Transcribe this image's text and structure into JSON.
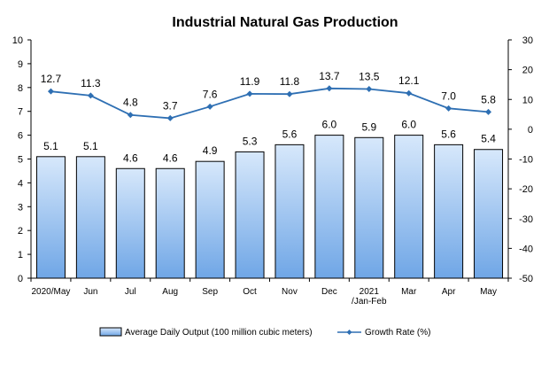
{
  "chart_data": {
    "type": "bar",
    "title": "Industrial Natural Gas Production",
    "categories": [
      [
        "2020/May"
      ],
      [
        "Jun"
      ],
      [
        "Jul"
      ],
      [
        "Aug"
      ],
      [
        "Sep"
      ],
      [
        "Oct"
      ],
      [
        "Nov"
      ],
      [
        "Dec"
      ],
      [
        "2021",
        "/Jan-Feb"
      ],
      [
        "Mar"
      ],
      [
        "Apr"
      ],
      [
        "May"
      ]
    ],
    "series": [
      {
        "name": "Average Daily Output (100 million cubic meters)",
        "type": "bar",
        "axis": "left",
        "values": [
          5.1,
          5.1,
          4.6,
          4.6,
          4.9,
          5.3,
          5.6,
          6.0,
          5.9,
          6.0,
          5.6,
          5.4
        ],
        "labels": [
          "5.1",
          "5.1",
          "4.6",
          "4.6",
          "4.9",
          "5.3",
          "5.6",
          "6.0",
          "5.9",
          "6.0",
          "5.6",
          "5.4"
        ]
      },
      {
        "name": "Growth Rate (%)",
        "type": "line",
        "axis": "right",
        "values": [
          12.7,
          11.3,
          4.8,
          3.7,
          7.6,
          11.9,
          11.8,
          13.7,
          13.5,
          12.1,
          7.0,
          5.8
        ],
        "labels": [
          "12.7",
          "11.3",
          "4.8",
          "3.7",
          "7.6",
          "11.9",
          "11.8",
          "13.7",
          "13.5",
          "12.1",
          "7.0",
          "5.8"
        ]
      }
    ],
    "y_left": {
      "min": 0,
      "max": 10,
      "step": 1,
      "ticks": [
        "0",
        "1",
        "2",
        "3",
        "4",
        "5",
        "6",
        "7",
        "8",
        "9",
        "10"
      ]
    },
    "y_right": {
      "min": -50,
      "max": 30,
      "step": 10,
      "ticks": [
        "-50",
        "-40",
        "-30",
        "-20",
        "-10",
        "0",
        "10",
        "20",
        "30"
      ]
    },
    "grid": false,
    "legend_position": "bottom",
    "colors": {
      "bar_top": "#d7e8fb",
      "bar_bottom": "#6fa6e6",
      "bar_stroke": "#000000",
      "line": "#2e6fb3",
      "axis": "#000000"
    }
  }
}
